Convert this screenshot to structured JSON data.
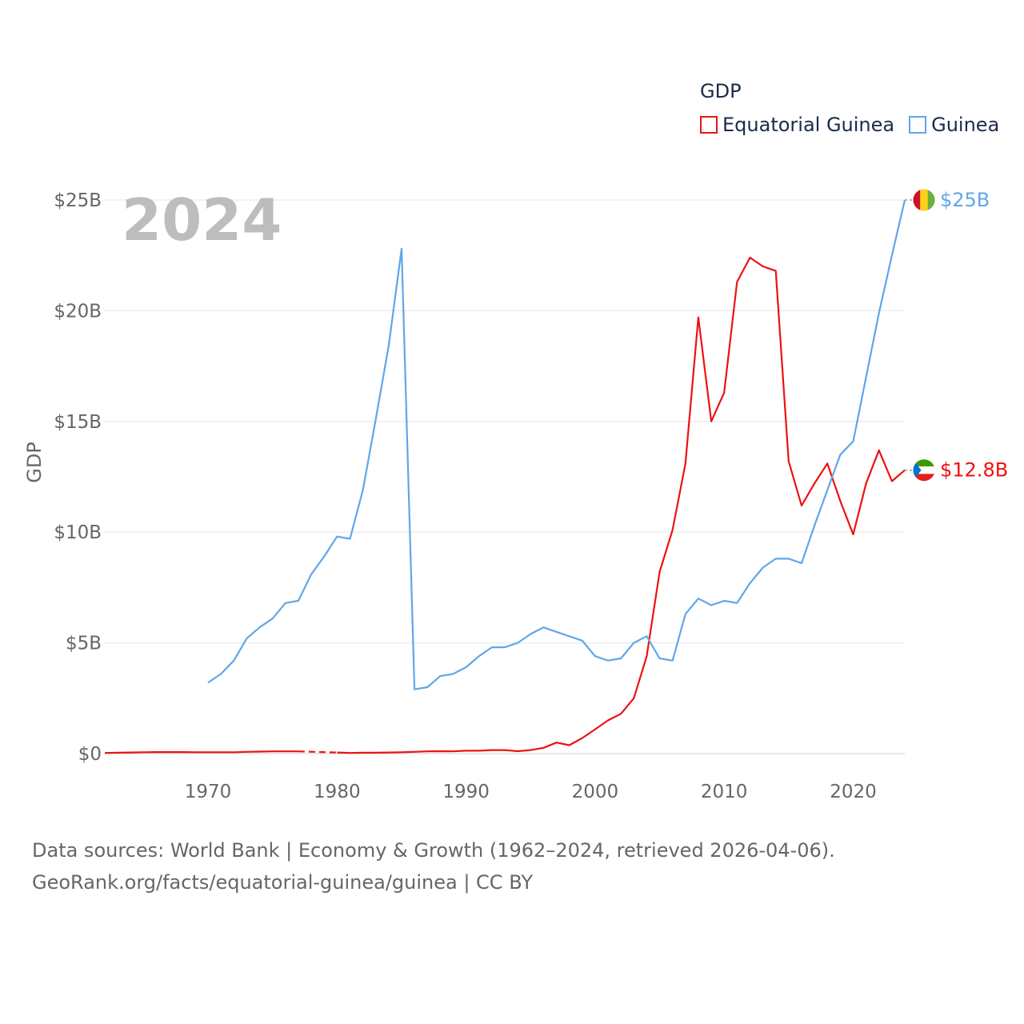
{
  "legend": {
    "title": "GDP",
    "items": [
      {
        "label": "Equatorial Guinea",
        "color": "#ee1111"
      },
      {
        "label": "Guinea",
        "color": "#5fa7e8"
      }
    ]
  },
  "footer": {
    "line1": "Data sources: World Bank | Economy & Growth (1962–2024, retrieved 2026-04-06).",
    "line2": "GeoRank.org/facts/equatorial-guinea/guinea | CC BY"
  },
  "chart_data": {
    "type": "line",
    "title": "GDP",
    "current_year": "2024",
    "xlabel": "",
    "ylabel": "GDP",
    "xlim": [
      1962,
      2024
    ],
    "ylim": [
      0,
      25
    ],
    "y_unit": "USD billions",
    "x_ticks": [
      1970,
      1980,
      1990,
      2000,
      2010,
      2020
    ],
    "y_ticks": [
      {
        "value": 0,
        "label": "$0"
      },
      {
        "value": 5,
        "label": "$5B"
      },
      {
        "value": 10,
        "label": "$10B"
      },
      {
        "value": 15,
        "label": "$15B"
      },
      {
        "value": 20,
        "label": "$20B"
      },
      {
        "value": 25,
        "label": "$25B"
      }
    ],
    "grid": true,
    "series": [
      {
        "name": "Equatorial Guinea",
        "color": "#ee1111",
        "end_label": "$12.8B",
        "flag_icon": "equatorial-guinea-flag-icon",
        "gap": [
          1977,
          1980
        ],
        "points": [
          [
            1962,
            0.03
          ],
          [
            1963,
            0.04
          ],
          [
            1964,
            0.05
          ],
          [
            1965,
            0.06
          ],
          [
            1966,
            0.07
          ],
          [
            1967,
            0.07
          ],
          [
            1968,
            0.07
          ],
          [
            1969,
            0.06
          ],
          [
            1970,
            0.06
          ],
          [
            1971,
            0.06
          ],
          [
            1972,
            0.06
          ],
          [
            1973,
            0.08
          ],
          [
            1974,
            0.09
          ],
          [
            1975,
            0.1
          ],
          [
            1976,
            0.1
          ],
          [
            1977,
            0.1
          ],
          [
            1980,
            0.05
          ],
          [
            1981,
            0.03
          ],
          [
            1982,
            0.04
          ],
          [
            1983,
            0.04
          ],
          [
            1984,
            0.05
          ],
          [
            1985,
            0.06
          ],
          [
            1986,
            0.08
          ],
          [
            1987,
            0.1
          ],
          [
            1988,
            0.11
          ],
          [
            1989,
            0.1
          ],
          [
            1990,
            0.13
          ],
          [
            1991,
            0.13
          ],
          [
            1992,
            0.16
          ],
          [
            1993,
            0.16
          ],
          [
            1994,
            0.11
          ],
          [
            1995,
            0.16
          ],
          [
            1996,
            0.26
          ],
          [
            1997,
            0.5
          ],
          [
            1998,
            0.38
          ],
          [
            1999,
            0.7
          ],
          [
            2000,
            1.1
          ],
          [
            2001,
            1.5
          ],
          [
            2002,
            1.8
          ],
          [
            2003,
            2.5
          ],
          [
            2004,
            4.4
          ],
          [
            2005,
            8.2
          ],
          [
            2006,
            10.1
          ],
          [
            2007,
            13.1
          ],
          [
            2008,
            19.7
          ],
          [
            2009,
            15.0
          ],
          [
            2010,
            16.3
          ],
          [
            2011,
            21.3
          ],
          [
            2012,
            22.4
          ],
          [
            2013,
            22.0
          ],
          [
            2014,
            21.8
          ],
          [
            2015,
            13.2
          ],
          [
            2016,
            11.2
          ],
          [
            2017,
            12.2
          ],
          [
            2018,
            13.1
          ],
          [
            2019,
            11.4
          ],
          [
            2020,
            9.9
          ],
          [
            2021,
            12.2
          ],
          [
            2022,
            13.7
          ],
          [
            2023,
            12.3
          ],
          [
            2024,
            12.8
          ]
        ]
      },
      {
        "name": "Guinea",
        "color": "#5fa7e8",
        "end_label": "$25B",
        "flag_icon": "guinea-flag-icon",
        "points": [
          [
            1970,
            3.2
          ],
          [
            1971,
            3.6
          ],
          [
            1972,
            4.2
          ],
          [
            1973,
            5.2
          ],
          [
            1974,
            5.7
          ],
          [
            1975,
            6.1
          ],
          [
            1976,
            6.8
          ],
          [
            1977,
            6.9
          ],
          [
            1978,
            8.1
          ],
          [
            1979,
            8.9
          ],
          [
            1980,
            9.8
          ],
          [
            1981,
            9.7
          ],
          [
            1982,
            11.9
          ],
          [
            1983,
            15.1
          ],
          [
            1984,
            18.4
          ],
          [
            1985,
            22.8
          ],
          [
            1986,
            2.9
          ],
          [
            1987,
            3.0
          ],
          [
            1988,
            3.5
          ],
          [
            1989,
            3.6
          ],
          [
            1990,
            3.9
          ],
          [
            1991,
            4.4
          ],
          [
            1992,
            4.8
          ],
          [
            1993,
            4.8
          ],
          [
            1994,
            5.0
          ],
          [
            1995,
            5.4
          ],
          [
            1996,
            5.7
          ],
          [
            1997,
            5.5
          ],
          [
            1998,
            5.3
          ],
          [
            1999,
            5.1
          ],
          [
            2000,
            4.4
          ],
          [
            2001,
            4.2
          ],
          [
            2002,
            4.3
          ],
          [
            2003,
            5.0
          ],
          [
            2004,
            5.3
          ],
          [
            2005,
            4.3
          ],
          [
            2006,
            4.2
          ],
          [
            2007,
            6.3
          ],
          [
            2008,
            7.0
          ],
          [
            2009,
            6.7
          ],
          [
            2010,
            6.9
          ],
          [
            2011,
            6.8
          ],
          [
            2012,
            7.7
          ],
          [
            2013,
            8.4
          ],
          [
            2014,
            8.8
          ],
          [
            2015,
            8.8
          ],
          [
            2016,
            8.6
          ],
          [
            2017,
            10.3
          ],
          [
            2018,
            11.9
          ],
          [
            2019,
            13.5
          ],
          [
            2020,
            14.1
          ],
          [
            2021,
            17.0
          ],
          [
            2022,
            19.9
          ],
          [
            2023,
            22.5
          ],
          [
            2024,
            25.0
          ]
        ]
      }
    ]
  }
}
